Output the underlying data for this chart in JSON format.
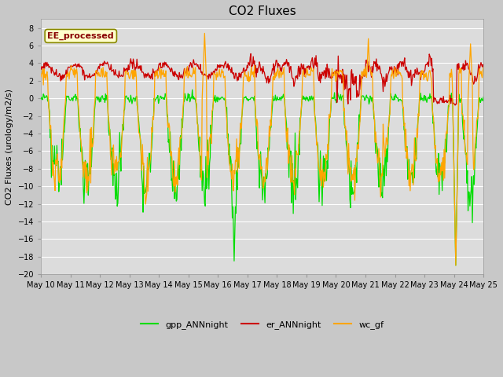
{
  "title": "CO2 Fluxes",
  "ylabel": "CO2 Fluxes (urology/m2/s)",
  "ylim": [
    -20,
    9
  ],
  "yticks": [
    -20,
    -18,
    -16,
    -14,
    -12,
    -10,
    -8,
    -6,
    -4,
    -2,
    0,
    2,
    4,
    6,
    8
  ],
  "fig_bg_color": "#c8c8c8",
  "plot_bg_color": "#dcdcdc",
  "grid_color": "#ffffff",
  "line_colors": {
    "gpp": "#00dd00",
    "er": "#cc0000",
    "wc": "#ffa500"
  },
  "line_width": 0.9,
  "legend_labels": [
    "gpp_ANNnight",
    "er_ANNnight",
    "wc_gf"
  ],
  "watermark_text": "EE_processed",
  "watermark_color": "#880000",
  "watermark_bg": "#ffffcc",
  "watermark_border": "#888800",
  "n_points": 720,
  "xlabel_dates": [
    "May 10",
    "May 11",
    "May 12",
    "May 13",
    "May 14",
    "May 15",
    "May 16",
    "May 17",
    "May 18",
    "May 19",
    "May 20",
    "May 21",
    "May 22",
    "May 23",
    "May 24",
    "May 25"
  ],
  "tick_fontsize": 7,
  "title_fontsize": 11,
  "ylabel_fontsize": 8
}
